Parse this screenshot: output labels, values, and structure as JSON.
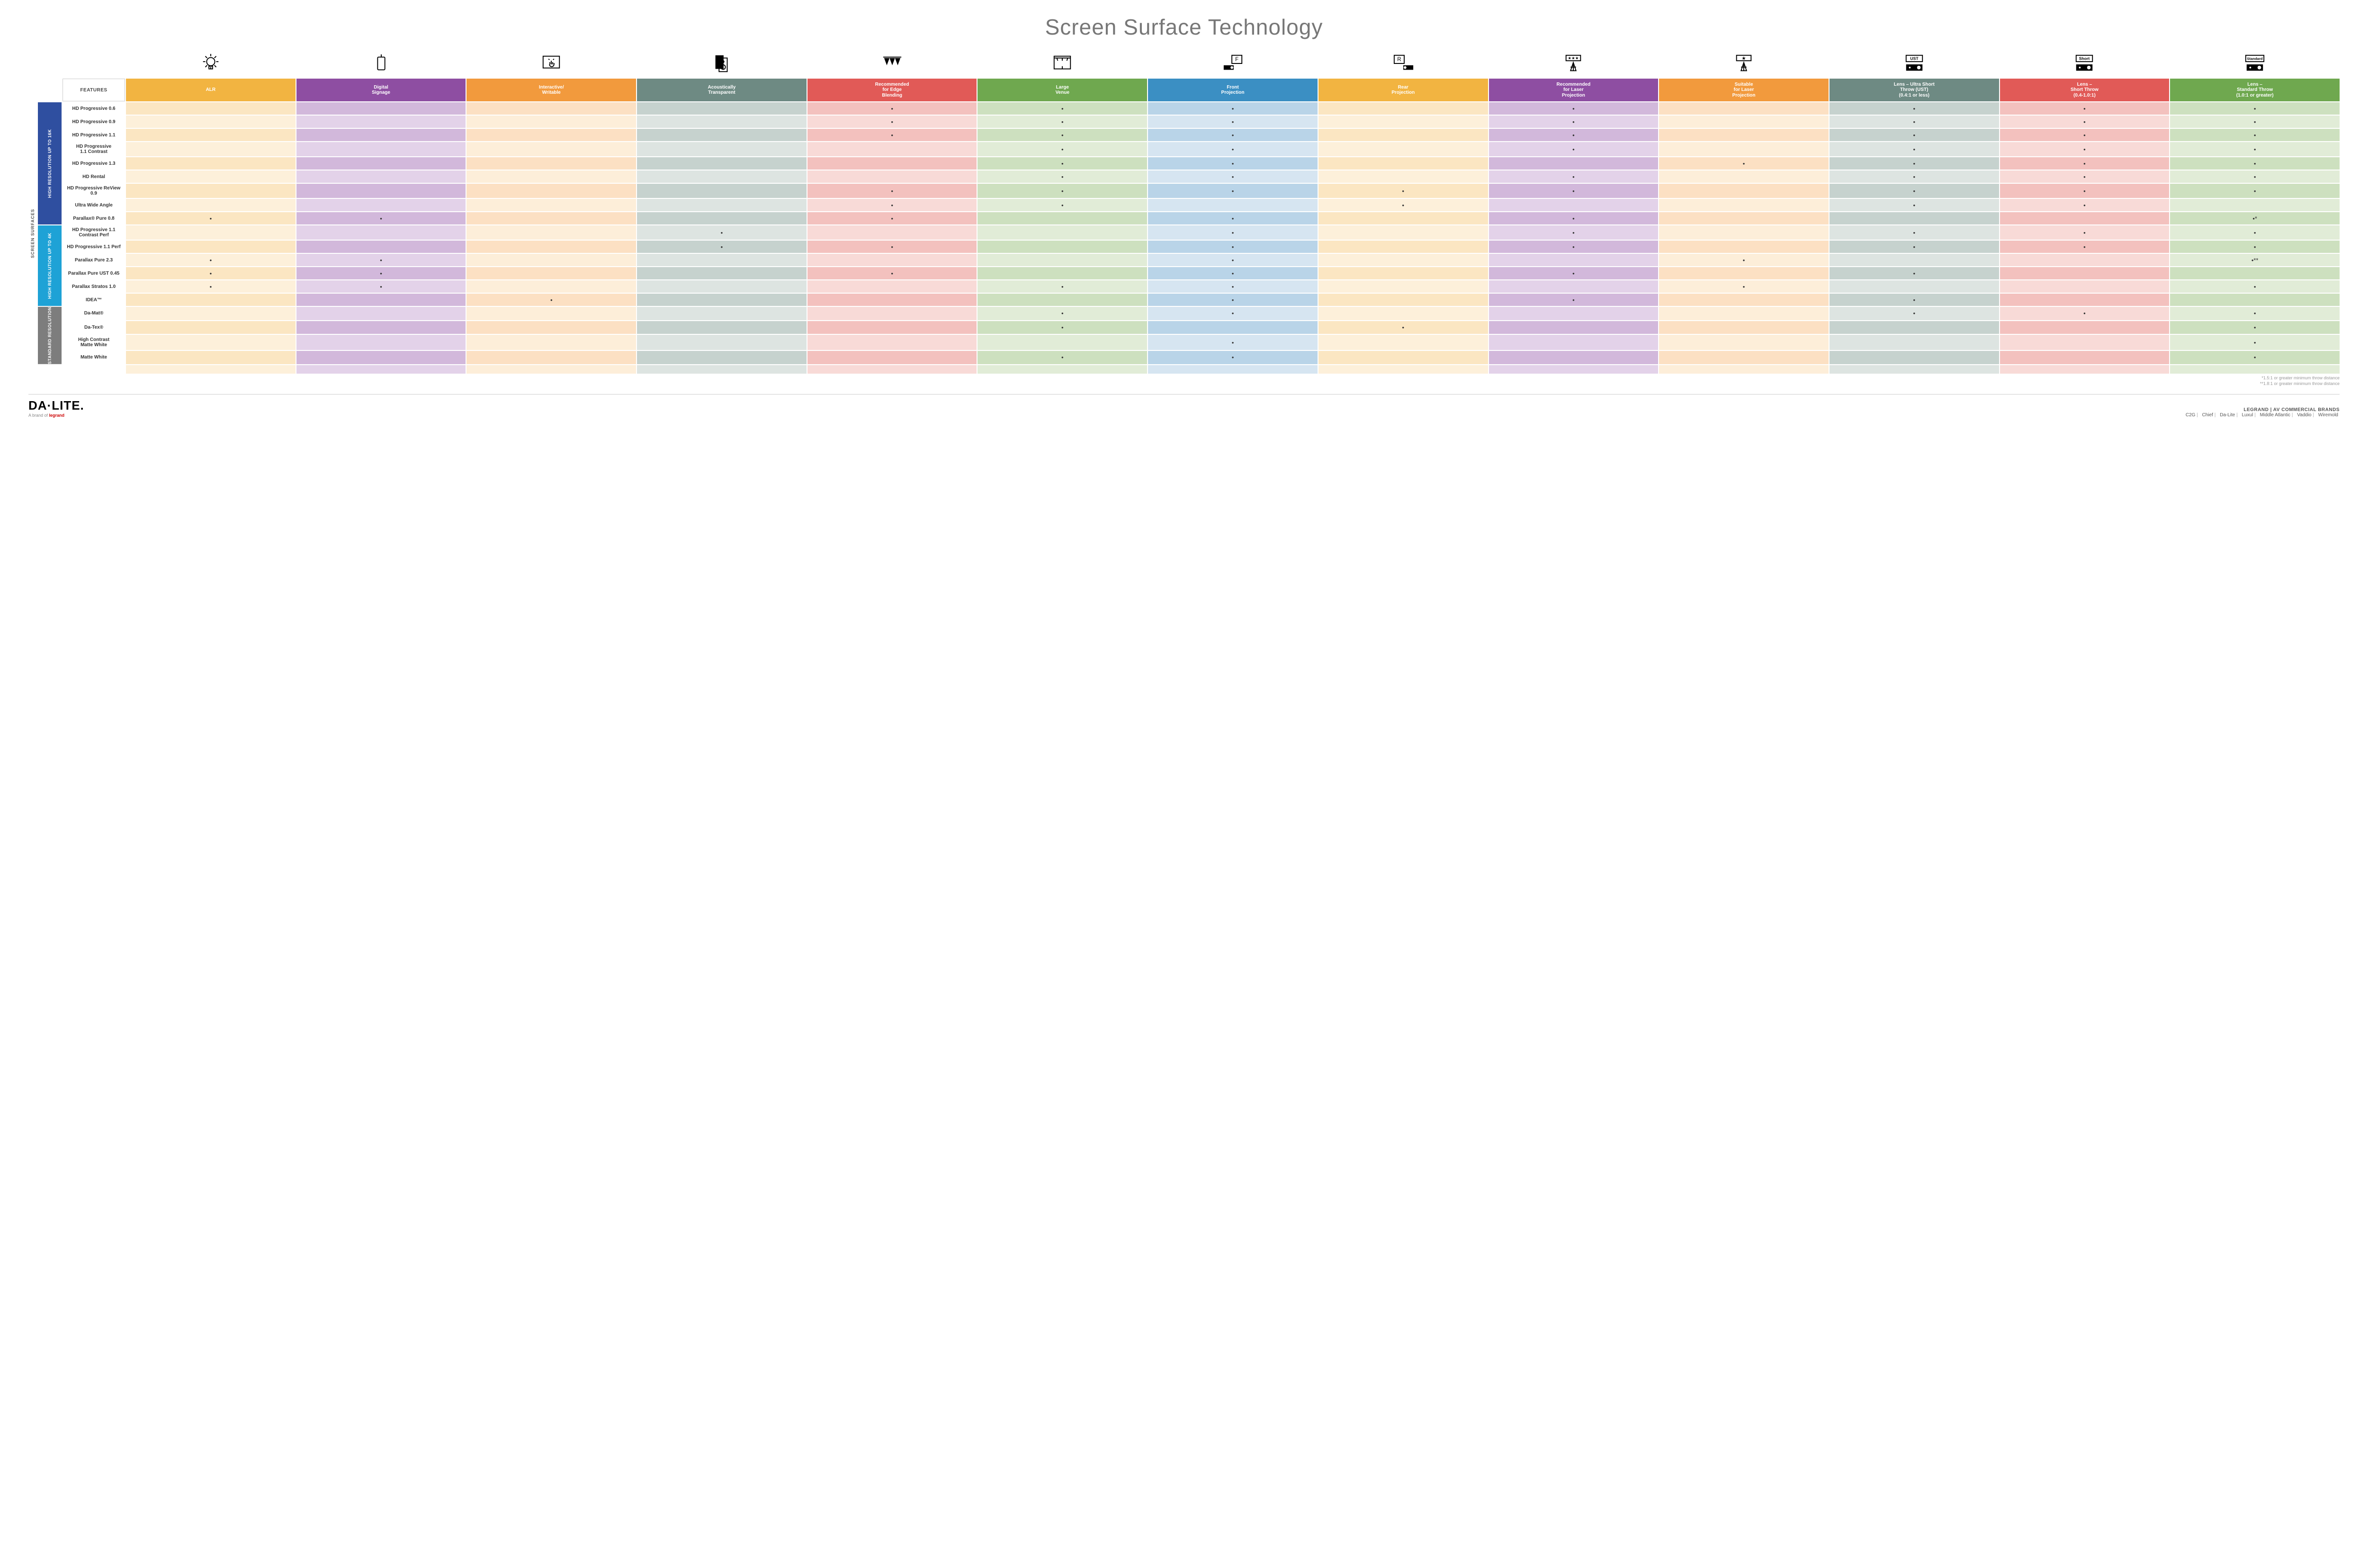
{
  "title": "Screen Surface Technology",
  "outer_side_label": "SCREEN SURFACES",
  "features_label": "FEATURES",
  "columns": [
    {
      "label": "ALR",
      "color": "#f2b441",
      "tint_even": "#fbe6c2",
      "tint_odd": "#fdf0da"
    },
    {
      "label": "Digital\nSignage",
      "color": "#8e4ea2",
      "tint_even": "#d2b8db",
      "tint_odd": "#e3d2e9"
    },
    {
      "label": "Interactive/\nWritable",
      "color": "#f29a3d",
      "tint_even": "#fce0c3",
      "tint_odd": "#fdeed9"
    },
    {
      "label": "Acoustically\nTransparent",
      "color": "#6e8a83",
      "tint_even": "#c6d2ce",
      "tint_odd": "#dde4e1"
    },
    {
      "label": "Recommended\nfor Edge\nBlending",
      "color": "#e15a57",
      "tint_even": "#f3c1be",
      "tint_odd": "#f8dad7"
    },
    {
      "label": "Large\nVenue",
      "color": "#6fa84f",
      "tint_even": "#cde0bf",
      "tint_odd": "#e1ecd7"
    },
    {
      "label": "Front\nProjection",
      "color": "#3b8fc3",
      "tint_even": "#b9d4e8",
      "tint_odd": "#d6e5f1"
    },
    {
      "label": "Rear\nProjection",
      "color": "#f2b441",
      "tint_even": "#fbe6c2",
      "tint_odd": "#fdf0da"
    },
    {
      "label": "Recommended\nfor Laser\nProjection",
      "color": "#8e4ea2",
      "tint_even": "#d2b8db",
      "tint_odd": "#e3d2e9"
    },
    {
      "label": "Suitable\nfor Laser\nProjection",
      "color": "#f29a3d",
      "tint_even": "#fce0c3",
      "tint_odd": "#fdeed9"
    },
    {
      "label": "Lens – Ultra Short\nThrow (UST)\n(0.4:1 or less)",
      "color": "#6e8a83",
      "tint_even": "#c6d2ce",
      "tint_odd": "#dde4e1"
    },
    {
      "label": "Lens –\nShort Throw\n(0.4-1.0:1)",
      "color": "#e15a57",
      "tint_even": "#f3c1be",
      "tint_odd": "#f8dad7"
    },
    {
      "label": "Lens –\nStandard Throw\n(1.0:1 or greater)",
      "color": "#6fa84f",
      "tint_even": "#cde0bf",
      "tint_odd": "#e1ecd7"
    }
  ],
  "groups": [
    {
      "label": "HIGH RESOLUTION UP TO 16K",
      "color": "#2f4fa0",
      "rows": [
        {
          "label": "HD Progressive 0.6",
          "dots": [
            "",
            "",
            "",
            "",
            "•",
            "•",
            "•",
            "",
            "•",
            "",
            "•",
            "•",
            "•"
          ]
        },
        {
          "label": "HD Progressive 0.9",
          "dots": [
            "",
            "",
            "",
            "",
            "•",
            "•",
            "•",
            "",
            "•",
            "",
            "•",
            "•",
            "•"
          ]
        },
        {
          "label": "HD Progressive 1.1",
          "dots": [
            "",
            "",
            "",
            "",
            "•",
            "•",
            "•",
            "",
            "•",
            "",
            "•",
            "•",
            "•"
          ]
        },
        {
          "label": "HD Progressive\n1.1 Contrast",
          "dots": [
            "",
            "",
            "",
            "",
            "",
            "•",
            "•",
            "",
            "•",
            "",
            "•",
            "•",
            "•"
          ]
        },
        {
          "label": "HD Progressive 1.3",
          "dots": [
            "",
            "",
            "",
            "",
            "",
            "•",
            "•",
            "",
            "",
            "•",
            "•",
            "•",
            "•"
          ]
        },
        {
          "label": "HD Rental",
          "dots": [
            "",
            "",
            "",
            "",
            "",
            "•",
            "•",
            "",
            "•",
            "",
            "•",
            "•",
            "•"
          ]
        },
        {
          "label": "HD Progressive ReView 0.9",
          "dots": [
            "",
            "",
            "",
            "",
            "•",
            "•",
            "•",
            "•",
            "•",
            "",
            "•",
            "•",
            "•"
          ]
        },
        {
          "label": "Ultra Wide Angle",
          "dots": [
            "",
            "",
            "",
            "",
            "•",
            "•",
            "",
            "•",
            "",
            "",
            "•",
            "•",
            ""
          ]
        },
        {
          "label": "Parallax® Pure 0.8",
          "dots": [
            "•",
            "•",
            "",
            "",
            "•",
            "",
            "•",
            "",
            "•",
            "",
            "",
            "",
            "•*"
          ]
        }
      ]
    },
    {
      "label": "HIGH RESOLUTION UP TO 4K",
      "color": "#1ea2d6",
      "rows": [
        {
          "label": "HD Progressive 1.1\nContrast Perf",
          "dots": [
            "",
            "",
            "",
            "•",
            "",
            "",
            "•",
            "",
            "•",
            "",
            "•",
            "•",
            "•"
          ]
        },
        {
          "label": "HD Progressive 1.1 Perf",
          "dots": [
            "",
            "",
            "",
            "•",
            "•",
            "",
            "•",
            "",
            "•",
            "",
            "•",
            "•",
            "•"
          ]
        },
        {
          "label": "Parallax Pure 2.3",
          "dots": [
            "•",
            "•",
            "",
            "",
            "",
            "",
            "•",
            "",
            "",
            "•",
            "",
            "",
            "•**"
          ]
        },
        {
          "label": "Parallax Pure UST 0.45",
          "dots": [
            "•",
            "•",
            "",
            "",
            "•",
            "",
            "•",
            "",
            "•",
            "",
            "•",
            "",
            ""
          ]
        },
        {
          "label": "Parallax Stratos 1.0",
          "dots": [
            "•",
            "•",
            "",
            "",
            "",
            "•",
            "•",
            "",
            "",
            "•",
            "",
            "",
            "•"
          ]
        },
        {
          "label": "IDEA™",
          "dots": [
            "",
            "",
            "•",
            "",
            "",
            "",
            "•",
            "",
            "•",
            "",
            "•",
            "",
            ""
          ]
        }
      ]
    },
    {
      "label": "STANDARD RESOLUTION",
      "color": "#7d7d7d",
      "rows": [
        {
          "label": "Da-Mat®",
          "dots": [
            "",
            "",
            "",
            "",
            "",
            "•",
            "•",
            "",
            "",
            "",
            "•",
            "•",
            "•"
          ]
        },
        {
          "label": "Da-Tex®",
          "dots": [
            "",
            "",
            "",
            "",
            "",
            "•",
            "",
            "•",
            "",
            "",
            "",
            "",
            "•"
          ]
        },
        {
          "label": "High Contrast\nMatte White",
          "dots": [
            "",
            "",
            "",
            "",
            "",
            "",
            "•",
            "",
            "",
            "",
            "",
            "",
            "•"
          ]
        },
        {
          "label": "Matte White",
          "dots": [
            "",
            "",
            "",
            "",
            "",
            "•",
            "•",
            "",
            "",
            "",
            "",
            "",
            "•"
          ]
        }
      ]
    }
  ],
  "footnotes": [
    "*1.5:1 or greater minimum throw distance",
    "**1.8:1 or greater minimum throw distance"
  ],
  "footer": {
    "logo": "DA·LITE.",
    "tagline_prefix": "A brand of ",
    "tagline_brand": "legrand",
    "right_title": "LEGRAND | AV COMMERCIAL BRANDS",
    "brands": [
      "C2G",
      "Chief",
      "Da-Lite",
      "Luxul",
      "Middle Atlantic",
      "Vaddio",
      "Wiremold"
    ]
  },
  "icons": [
    "bulb",
    "cylinder",
    "touch",
    "speakers",
    "triangles",
    "venue",
    "front-proj",
    "rear-proj",
    "laser-stars",
    "laser-star",
    "ust-proj",
    "short-proj",
    "standard-proj"
  ]
}
